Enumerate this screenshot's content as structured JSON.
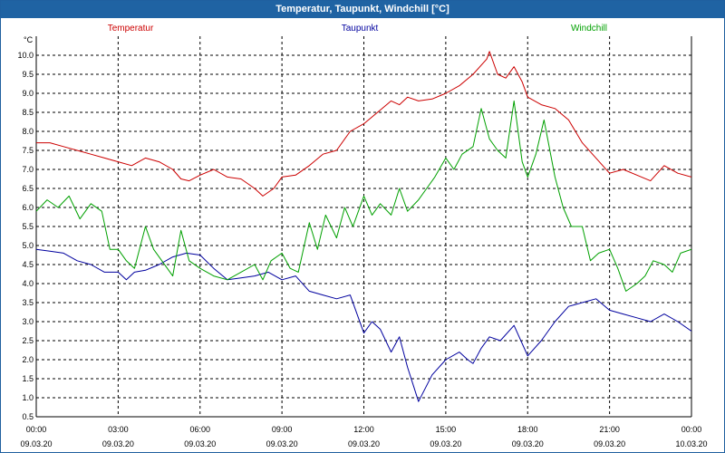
{
  "chart_data": {
    "type": "line",
    "title": "Temperatur, Taupunkt, Windchill [°C]",
    "ylabel": "°C",
    "ylim": [
      0.5,
      10.5
    ],
    "yticks": [
      "0.5",
      "1.0",
      "1.5",
      "2.0",
      "2.5",
      "3.0",
      "3.5",
      "4.0",
      "4.5",
      "5.0",
      "5.5",
      "6.0",
      "6.5",
      "7.0",
      "7.5",
      "8.0",
      "8.5",
      "9.0",
      "9.5",
      "10.0"
    ],
    "xlim": [
      0,
      24
    ],
    "xticks": [
      {
        "time": "00:00",
        "date": "09.03.20"
      },
      {
        "time": "03:00",
        "date": "09.03.20"
      },
      {
        "time": "06:00",
        "date": "09.03.20"
      },
      {
        "time": "09:00",
        "date": "09.03.20"
      },
      {
        "time": "12:00",
        "date": "09.03.20"
      },
      {
        "time": "15:00",
        "date": "09.03.20"
      },
      {
        "time": "18:00",
        "date": "09.03.20"
      },
      {
        "time": "21:00",
        "date": "09.03.20"
      },
      {
        "time": "00:00",
        "date": "10.03.20"
      }
    ],
    "grid": true,
    "series": [
      {
        "name": "Temperatur",
        "color": "#cc0000",
        "x": [
          0,
          0.5,
          1,
          1.5,
          2,
          2.5,
          3,
          3.5,
          4,
          4.5,
          5,
          5.3,
          5.6,
          6,
          6.5,
          7,
          7.5,
          8,
          8.3,
          8.7,
          9,
          9.5,
          10,
          10.5,
          11,
          11.5,
          12,
          12.5,
          13,
          13.3,
          13.6,
          14,
          14.5,
          15,
          15.5,
          16,
          16.5,
          16.6,
          16.9,
          17.2,
          17.5,
          17.8,
          18,
          18.5,
          19,
          19.5,
          20,
          20.5,
          21,
          21.5,
          22,
          22.5,
          23,
          23.5,
          24
        ],
        "y": [
          7.7,
          7.7,
          7.6,
          7.5,
          7.4,
          7.3,
          7.2,
          7.1,
          7.3,
          7.2,
          7.0,
          6.75,
          6.7,
          6.85,
          7.0,
          6.8,
          6.75,
          6.5,
          6.3,
          6.5,
          6.8,
          6.85,
          7.1,
          7.4,
          7.5,
          8.0,
          8.2,
          8.5,
          8.8,
          8.7,
          8.9,
          8.8,
          8.85,
          9.0,
          9.2,
          9.5,
          9.9,
          10.1,
          9.5,
          9.4,
          9.7,
          9.3,
          8.9,
          8.7,
          8.6,
          8.3,
          7.7,
          7.3,
          6.9,
          7.0,
          6.85,
          6.7,
          7.1,
          6.9,
          6.8
        ]
      },
      {
        "name": "Taupunkt",
        "color": "#00009e",
        "x": [
          0,
          0.5,
          1,
          1.5,
          2,
          2.5,
          3,
          3.3,
          3.6,
          4,
          4.5,
          5,
          5.5,
          6,
          6.5,
          7,
          7.5,
          8,
          8.5,
          9,
          9.5,
          10,
          10.5,
          11,
          11.5,
          12,
          12.3,
          12.6,
          13,
          13.3,
          13.6,
          14,
          14.5,
          15,
          15.5,
          15.8,
          16,
          16.3,
          16.6,
          17,
          17.5,
          18,
          18.5,
          19,
          19.5,
          20,
          20.5,
          21,
          21.5,
          22,
          22.5,
          23,
          23.5,
          24
        ],
        "y": [
          4.9,
          4.85,
          4.8,
          4.6,
          4.5,
          4.3,
          4.3,
          4.1,
          4.3,
          4.35,
          4.5,
          4.7,
          4.8,
          4.75,
          4.4,
          4.1,
          4.15,
          4.2,
          4.3,
          4.1,
          4.2,
          3.8,
          3.7,
          3.6,
          3.7,
          2.7,
          3.0,
          2.8,
          2.2,
          2.6,
          1.8,
          0.9,
          1.6,
          2.0,
          2.2,
          2.0,
          1.9,
          2.3,
          2.6,
          2.5,
          2.9,
          2.1,
          2.5,
          3.0,
          3.4,
          3.5,
          3.6,
          3.3,
          3.2,
          3.1,
          3.0,
          3.2,
          3.0,
          2.75
        ]
      },
      {
        "name": "Windchill",
        "color": "#00a000",
        "x": [
          0,
          0.4,
          0.8,
          1.2,
          1.6,
          2,
          2.4,
          2.7,
          3,
          3.3,
          3.6,
          4,
          4.3,
          4.6,
          5,
          5.3,
          5.6,
          6,
          6.5,
          7,
          7.5,
          8,
          8.3,
          8.6,
          9,
          9.3,
          9.6,
          10,
          10.3,
          10.6,
          11,
          11.3,
          11.6,
          12,
          12.3,
          12.6,
          13,
          13.3,
          13.6,
          14,
          14.3,
          14.6,
          15,
          15.3,
          15.6,
          16,
          16.3,
          16.6,
          16.9,
          17.2,
          17.5,
          17.8,
          18,
          18.3,
          18.6,
          19,
          19.3,
          19.6,
          20,
          20.3,
          20.6,
          21,
          21.3,
          21.6,
          22,
          22.3,
          22.6,
          23,
          23.3,
          23.6,
          24
        ],
        "y": [
          5.9,
          6.2,
          6.0,
          6.3,
          5.7,
          6.1,
          5.9,
          4.9,
          4.9,
          4.6,
          4.4,
          5.5,
          4.9,
          4.6,
          4.2,
          5.4,
          4.6,
          4.4,
          4.2,
          4.1,
          4.3,
          4.5,
          4.1,
          4.6,
          4.8,
          4.4,
          4.3,
          5.6,
          4.9,
          5.8,
          5.2,
          6.0,
          5.5,
          6.3,
          5.8,
          6.1,
          5.8,
          6.5,
          5.9,
          6.2,
          6.5,
          6.8,
          7.3,
          7.0,
          7.4,
          7.6,
          8.6,
          7.8,
          7.5,
          7.3,
          8.8,
          7.2,
          6.8,
          7.4,
          8.3,
          6.8,
          6.0,
          5.5,
          5.5,
          4.6,
          4.8,
          4.9,
          4.4,
          3.8,
          4.0,
          4.2,
          4.6,
          4.5,
          4.3,
          4.8,
          4.9
        ]
      }
    ]
  }
}
